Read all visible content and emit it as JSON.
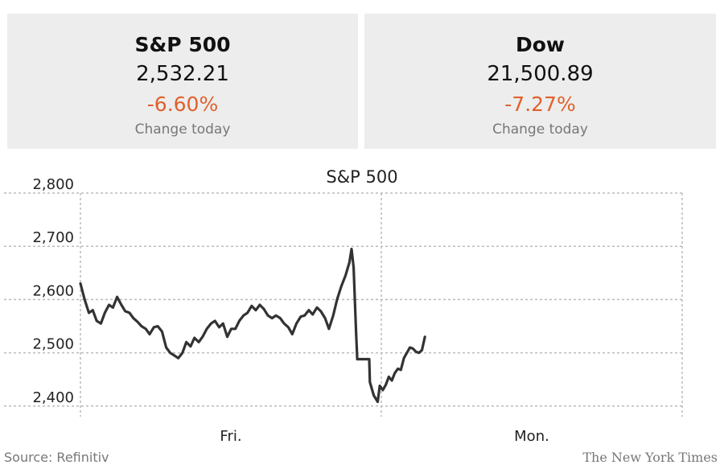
{
  "cards": [
    {
      "name": "S&P 500",
      "value": "2,532.21",
      "change": "-6.60%",
      "sub": "Change today"
    },
    {
      "name": "Dow",
      "value": "21,500.89",
      "change": "-7.27%",
      "sub": "Change today"
    }
  ],
  "colors": {
    "down": "#e0612c",
    "line": "#333333",
    "grid": "#bbbbbb",
    "card_bg": "#ededed"
  },
  "footer": {
    "source": "Source: Refinitiv",
    "credit": "The New York Times"
  },
  "chart_data": {
    "type": "line",
    "title": "S&P 500",
    "xlabel": "",
    "ylabel": "",
    "x_ticks": [
      "Fri.",
      "Mon."
    ],
    "y_ticks": [
      "2,800",
      "2,700",
      "2,600",
      "2,500",
      "2,400"
    ],
    "y_tick_values": [
      2800,
      2700,
      2600,
      2500,
      2400
    ],
    "ylim": [
      2380,
      2800
    ],
    "xlim": [
      0,
      2
    ],
    "grid": true,
    "series": [
      {
        "values": [
          [
            0.0,
            2630
          ],
          [
            0.014,
            2600
          ],
          [
            0.028,
            2575
          ],
          [
            0.041,
            2580
          ],
          [
            0.054,
            2560
          ],
          [
            0.068,
            2555
          ],
          [
            0.081,
            2575
          ],
          [
            0.095,
            2590
          ],
          [
            0.108,
            2585
          ],
          [
            0.122,
            2605
          ],
          [
            0.136,
            2590
          ],
          [
            0.149,
            2578
          ],
          [
            0.163,
            2575
          ],
          [
            0.176,
            2565
          ],
          [
            0.19,
            2558
          ],
          [
            0.203,
            2550
          ],
          [
            0.217,
            2545
          ],
          [
            0.23,
            2535
          ],
          [
            0.244,
            2548
          ],
          [
            0.257,
            2550
          ],
          [
            0.271,
            2540
          ],
          [
            0.285,
            2510
          ],
          [
            0.298,
            2500
          ],
          [
            0.312,
            2495
          ],
          [
            0.325,
            2490
          ],
          [
            0.339,
            2500
          ],
          [
            0.352,
            2520
          ],
          [
            0.366,
            2512
          ],
          [
            0.379,
            2528
          ],
          [
            0.393,
            2520
          ],
          [
            0.406,
            2530
          ],
          [
            0.42,
            2545
          ],
          [
            0.434,
            2555
          ],
          [
            0.447,
            2560
          ],
          [
            0.461,
            2548
          ],
          [
            0.474,
            2555
          ],
          [
            0.488,
            2530
          ],
          [
            0.501,
            2545
          ],
          [
            0.515,
            2545
          ],
          [
            0.528,
            2560
          ],
          [
            0.542,
            2570
          ],
          [
            0.555,
            2575
          ],
          [
            0.569,
            2588
          ],
          [
            0.583,
            2580
          ],
          [
            0.596,
            2590
          ],
          [
            0.61,
            2582
          ],
          [
            0.623,
            2570
          ],
          [
            0.637,
            2565
          ],
          [
            0.65,
            2570
          ],
          [
            0.664,
            2565
          ],
          [
            0.677,
            2555
          ],
          [
            0.691,
            2548
          ],
          [
            0.704,
            2535
          ],
          [
            0.718,
            2555
          ],
          [
            0.732,
            2568
          ],
          [
            0.745,
            2570
          ],
          [
            0.759,
            2580
          ],
          [
            0.772,
            2572
          ],
          [
            0.786,
            2585
          ],
          [
            0.799,
            2578
          ],
          [
            0.813,
            2565
          ],
          [
            0.826,
            2545
          ],
          [
            0.84,
            2570
          ],
          [
            0.853,
            2600
          ],
          [
            0.867,
            2625
          ],
          [
            0.881,
            2645
          ],
          [
            0.894,
            2670
          ],
          [
            0.901,
            2695
          ],
          [
            0.908,
            2660
          ],
          [
            0.912,
            2600
          ],
          [
            0.916,
            2540
          ],
          [
            0.92,
            2488
          ],
          [
            0.96,
            2488
          ],
          [
            0.962,
            2445
          ],
          [
            0.975,
            2420
          ],
          [
            0.988,
            2408
          ],
          [
            0.995,
            2438
          ],
          [
            1.005,
            2430
          ],
          [
            1.015,
            2440
          ],
          [
            1.025,
            2455
          ],
          [
            1.035,
            2448
          ],
          [
            1.045,
            2462
          ],
          [
            1.055,
            2470
          ],
          [
            1.065,
            2468
          ],
          [
            1.075,
            2490
          ],
          [
            1.085,
            2500
          ],
          [
            1.095,
            2510
          ],
          [
            1.105,
            2508
          ],
          [
            1.115,
            2502
          ],
          [
            1.125,
            2500
          ],
          [
            1.135,
            2505
          ],
          [
            1.145,
            2530
          ]
        ]
      }
    ]
  }
}
